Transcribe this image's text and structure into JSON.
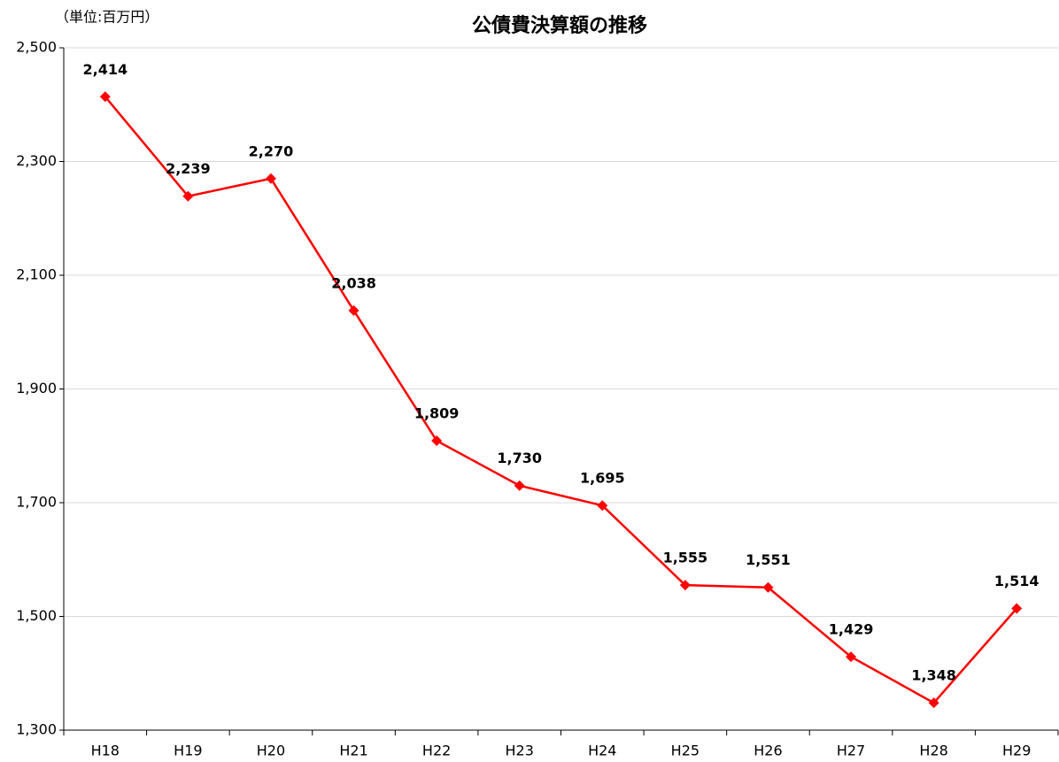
{
  "chart_data": {
    "type": "line",
    "title": "公債費決算額の推移",
    "unit_label": "（単位:百万円）",
    "categories": [
      "H18",
      "H19",
      "H20",
      "H21",
      "H22",
      "H23",
      "H24",
      "H25",
      "H26",
      "H27",
      "H28",
      "H29"
    ],
    "values": [
      2414,
      2239,
      2270,
      2038,
      1809,
      1730,
      1695,
      1555,
      1551,
      1429,
      1348,
      1514
    ],
    "value_labels": [
      "2,414",
      "2,239",
      "2,270",
      "2,038",
      "1,809",
      "1,730",
      "1,695",
      "1,555",
      "1,551",
      "1,429",
      "1,348",
      "1,514"
    ],
    "color": "#ff0000",
    "ylim": [
      1300,
      2500
    ],
    "yticks": [
      {
        "value": 1300,
        "label": "1,300"
      },
      {
        "value": 1500,
        "label": "1,500"
      },
      {
        "value": 1700,
        "label": "1,700"
      },
      {
        "value": 1900,
        "label": "1,900"
      },
      {
        "value": 2100,
        "label": "2,100"
      },
      {
        "value": 2300,
        "label": "2,300"
      },
      {
        "value": 2500,
        "label": "2,500"
      }
    ],
    "grid": true
  }
}
